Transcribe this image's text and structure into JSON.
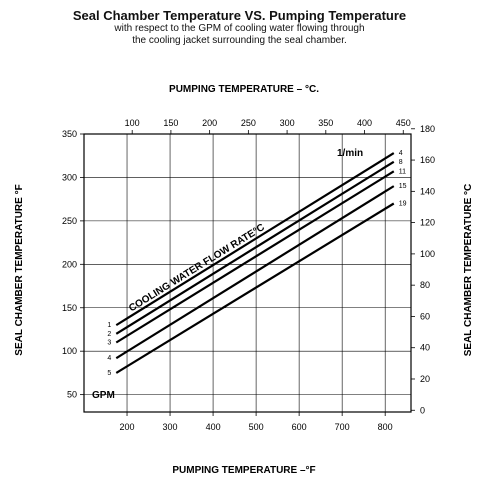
{
  "title": "Seal Chamber Temperature VS. Pumping Temperature",
  "subtitle_line1": "with respect to the GPM of cooling water flowing through",
  "subtitle_line2": "the cooling jacket surrounding the seal chamber.",
  "chart_data": {
    "type": "line",
    "top_axis_label": "PUMPING TEMPERATURE – °C.",
    "bottom_axis_label": "PUMPING TEMPERATURE –°F",
    "left_axis_label": "SEAL CHAMBER TEMPERATURE °F",
    "right_axis_label": "SEAL CHAMBER TEMPERATURE °C",
    "x_bottom_ticks": [
      "200",
      "300",
      "400",
      "500",
      "600",
      "700",
      "800"
    ],
    "x_top_ticks": [
      "100",
      "150",
      "200",
      "250",
      "300",
      "350",
      "400",
      "450"
    ],
    "y_left_ticks": [
      "50",
      "100",
      "150",
      "200",
      "250",
      "300",
      "350"
    ],
    "y_right_ticks": [
      "0",
      "20",
      "40",
      "60",
      "80",
      "100",
      "120",
      "140",
      "160",
      "180"
    ],
    "xlim_F": [
      100,
      860
    ],
    "ylim_F": [
      30,
      350
    ],
    "grid": true,
    "gpm_label": "GPM",
    "lpm_label": "1/min",
    "annotation": "COOLING WATER FLOW RATE°C",
    "series": [
      {
        "gpm": "1",
        "lpm": "4",
        "x": [
          175,
          820
        ],
        "y": [
          130,
          328
        ]
      },
      {
        "gpm": "2",
        "lpm": "8",
        "x": [
          175,
          820
        ],
        "y": [
          120,
          318
        ]
      },
      {
        "gpm": "3",
        "lpm": "11",
        "x": [
          175,
          820
        ],
        "y": [
          110,
          307
        ]
      },
      {
        "gpm": "4",
        "lpm": "15",
        "x": [
          175,
          820
        ],
        "y": [
          92,
          290
        ]
      },
      {
        "gpm": "5",
        "lpm": "19",
        "x": [
          175,
          820
        ],
        "y": [
          75,
          270
        ]
      }
    ]
  }
}
